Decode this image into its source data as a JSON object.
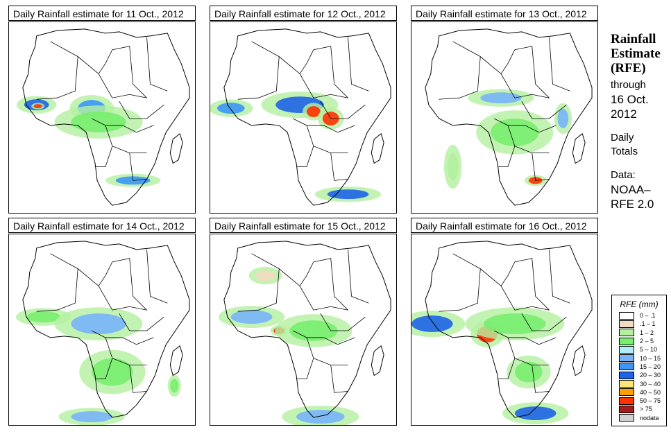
{
  "panels": [
    {
      "title": "Daily Rainfall estimate for  11 Oct., 2012",
      "date": "11 Oct., 2012"
    },
    {
      "title": "Daily Rainfall estimate for  12 Oct., 2012",
      "date": "12 Oct., 2012"
    },
    {
      "title": "Daily Rainfall estimate for  13 Oct., 2012",
      "date": "13 Oct., 2012"
    },
    {
      "title": "Daily Rainfall estimate for  14 Oct., 2012",
      "date": "14 Oct., 2012"
    },
    {
      "title": "Daily Rainfall estimate for  15 Oct., 2012",
      "date": "15 Oct., 2012"
    },
    {
      "title": "Daily Rainfall estimate for  16 Oct., 2012",
      "date": "16 Oct., 2012"
    }
  ],
  "side": {
    "title_lines": [
      "Rainfall",
      "Estimate",
      "(RFE)"
    ],
    "through": "through",
    "date_lines": [
      "16 Oct.",
      "2012"
    ],
    "period_lines": [
      "Daily",
      "Totals"
    ],
    "data_label": "Data:",
    "source_lines": [
      "NOAA–",
      "RFE 2.0"
    ]
  },
  "legend": {
    "title": "RFE (mm)",
    "items": [
      {
        "label": "0 – .1",
        "color": "#ffffff"
      },
      {
        "label": ".1 – 1",
        "color": "#f0dcc0"
      },
      {
        "label": "1 – 2",
        "color": "#b4f0a0"
      },
      {
        "label": "2 – 5",
        "color": "#78ee6e"
      },
      {
        "label": "5 – 10",
        "color": "#b4ecfa"
      },
      {
        "label": "10 – 15",
        "color": "#78b4fa"
      },
      {
        "label": "15 – 20",
        "color": "#3c96f5"
      },
      {
        "label": "20 – 30",
        "color": "#1e64e6"
      },
      {
        "label": "30 – 40",
        "color": "#fae678"
      },
      {
        "label": "40 – 50",
        "color": "#ffa000"
      },
      {
        "label": "50 – 75",
        "color": "#ff3200"
      },
      {
        "label": "> 75",
        "color": "#a01e1e"
      },
      {
        "label": "nodata",
        "color": "#d2d2d2"
      }
    ]
  }
}
